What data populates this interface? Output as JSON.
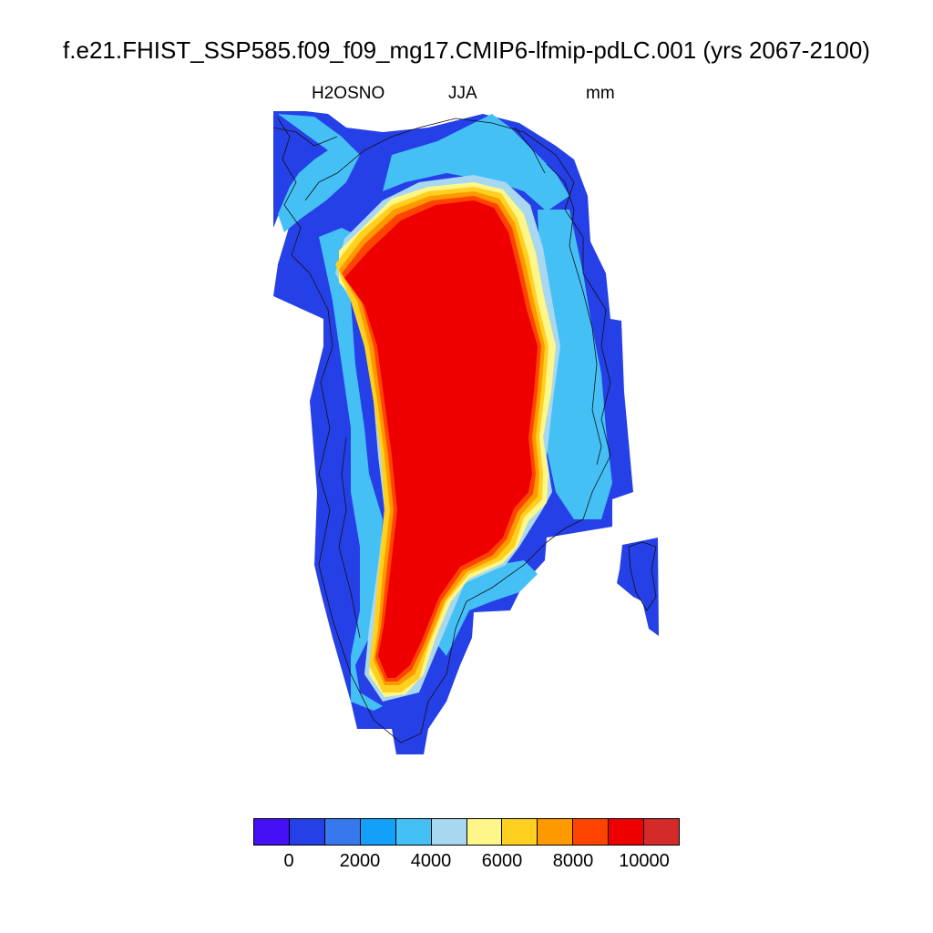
{
  "title": "f.e21.FHIST_SSP585.f09_f09_mg17.CMIP6-lfmip-pdLC.001 (yrs 2067-2100)",
  "variable": "H2OSNO",
  "season": "JJA",
  "units": "mm",
  "map": {
    "region": "Greenland",
    "field_colors": {
      "interior": "#ee0000",
      "outer_edge": "#2640e8",
      "coast_mid": "#45c0f5",
      "ring_light": "#a8d8f0",
      "ring_yellow": "#fff68a",
      "ring_gold": "#ffd020",
      "ring_orange": "#ff9900",
      "ring_dark_orange": "#ff4400"
    }
  },
  "colorbar": {
    "colors": [
      "#4410f5",
      "#2640e8",
      "#3878ee",
      "#12a0f8",
      "#45c0f5",
      "#a8d8f0",
      "#fff68a",
      "#ffd020",
      "#ff9900",
      "#ff4400",
      "#ee0000",
      "#d42a2a"
    ],
    "tick_labels": [
      "0",
      "2000",
      "4000",
      "6000",
      "8000",
      "10000"
    ]
  }
}
